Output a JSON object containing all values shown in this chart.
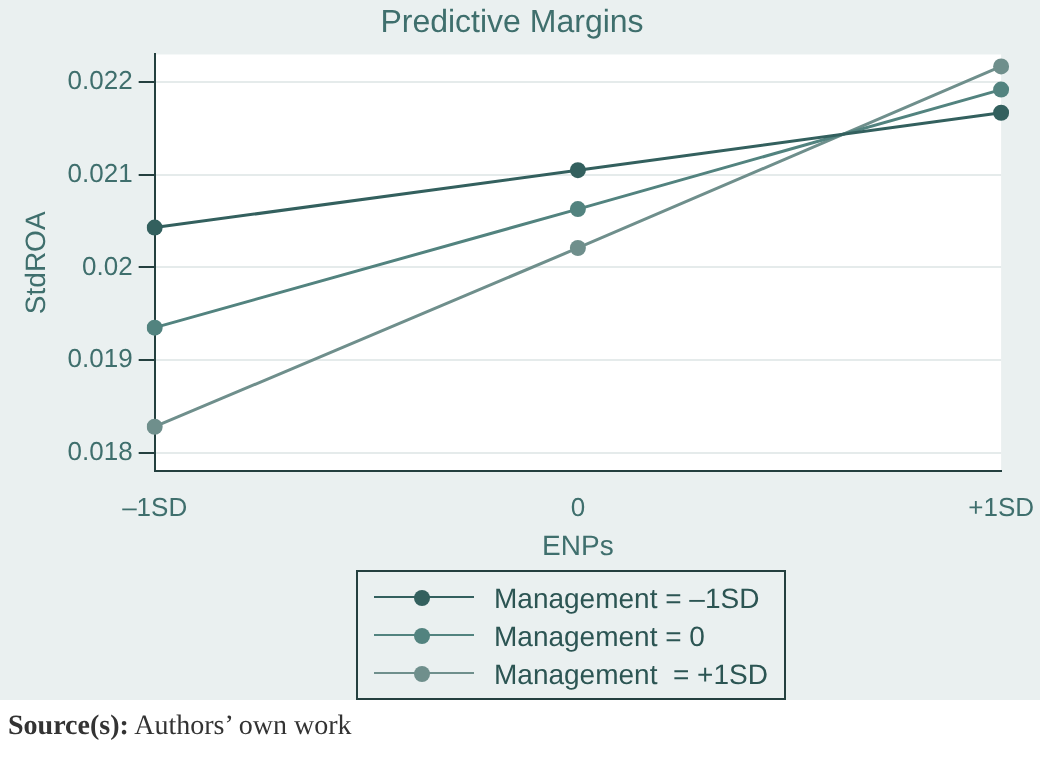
{
  "chart_data": {
    "type": "line",
    "title": "Predictive Margins",
    "xlabel": "ENPs",
    "ylabel": "StdROA",
    "categories": [
      "–1SD",
      "0",
      "+1SD"
    ],
    "series": [
      {
        "name": "Management = –1SD",
        "color": "#33605e",
        "values": [
          0.02043,
          0.02105,
          0.02167
        ]
      },
      {
        "name": "Management = 0",
        "color": "#52837f",
        "values": [
          0.01935,
          0.02063,
          0.02192
        ]
      },
      {
        "name": "Management  = +1SD",
        "color": "#6f8f8c",
        "values": [
          0.01828,
          0.02021,
          0.02217
        ]
      }
    ],
    "ylim": [
      0.0178,
      0.0223
    ],
    "yticks": [
      0.018,
      0.019,
      0.02,
      0.021,
      0.022
    ],
    "grid": "y",
    "legend": "bottom",
    "marker": "circle",
    "line_style": "solid",
    "annotations": [
      "Source(s): Authors’ own work"
    ]
  }
}
